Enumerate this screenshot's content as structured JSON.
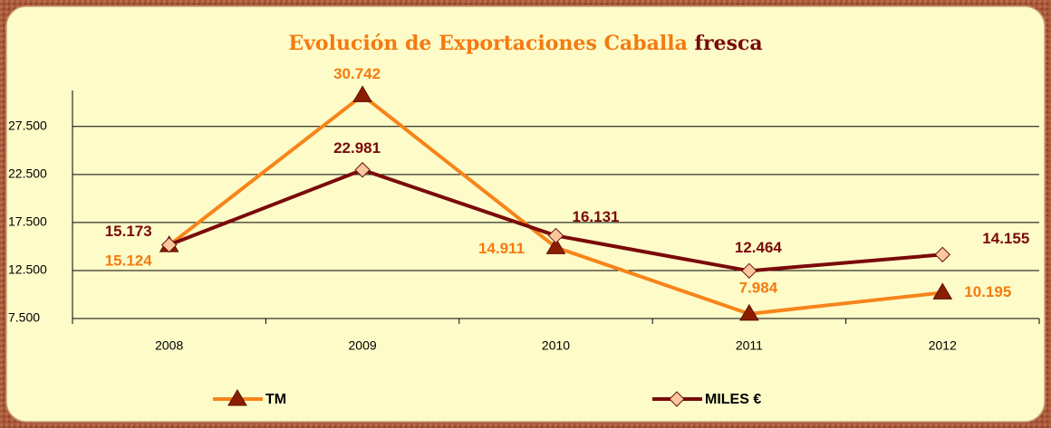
{
  "chart_data": {
    "type": "line",
    "title": [
      "Evolución de Exportaciones Caballa",
      "fresca"
    ],
    "title_colors": [
      "#f47a10",
      "#7a0a0a"
    ],
    "categories": [
      "2008",
      "2009",
      "2010",
      "2011",
      "2012"
    ],
    "series": [
      {
        "name": "TM",
        "color": "#f7841a",
        "marker": "triangle",
        "marker_color": "#8b1e00",
        "label_color": "#f47a10",
        "values": [
          15124,
          30742,
          14911,
          7984,
          10195
        ],
        "value_labels": [
          "15.124",
          "30.742",
          "14.911",
          "7.984",
          "10.195"
        ]
      },
      {
        "name": "MILES €",
        "color": "#7a0a0a",
        "marker": "diamond",
        "marker_color": "#fcc79c",
        "label_color": "#7a0a0a",
        "values": [
          15173,
          22981,
          16131,
          12464,
          14155
        ],
        "value_labels": [
          "15.173",
          "22.981",
          "16.131",
          "12.464",
          "14.155"
        ]
      }
    ],
    "ylim": [
      7500,
      31250
    ],
    "yticks": [
      {
        "value": 7500,
        "label": "7.500"
      },
      {
        "value": 12500,
        "label": "12.500"
      },
      {
        "value": 17500,
        "label": "17.500"
      },
      {
        "value": 22500,
        "label": "22.500"
      },
      {
        "value": 27500,
        "label": "27.500"
      }
    ],
    "grid": true,
    "legend": "bottom"
  }
}
